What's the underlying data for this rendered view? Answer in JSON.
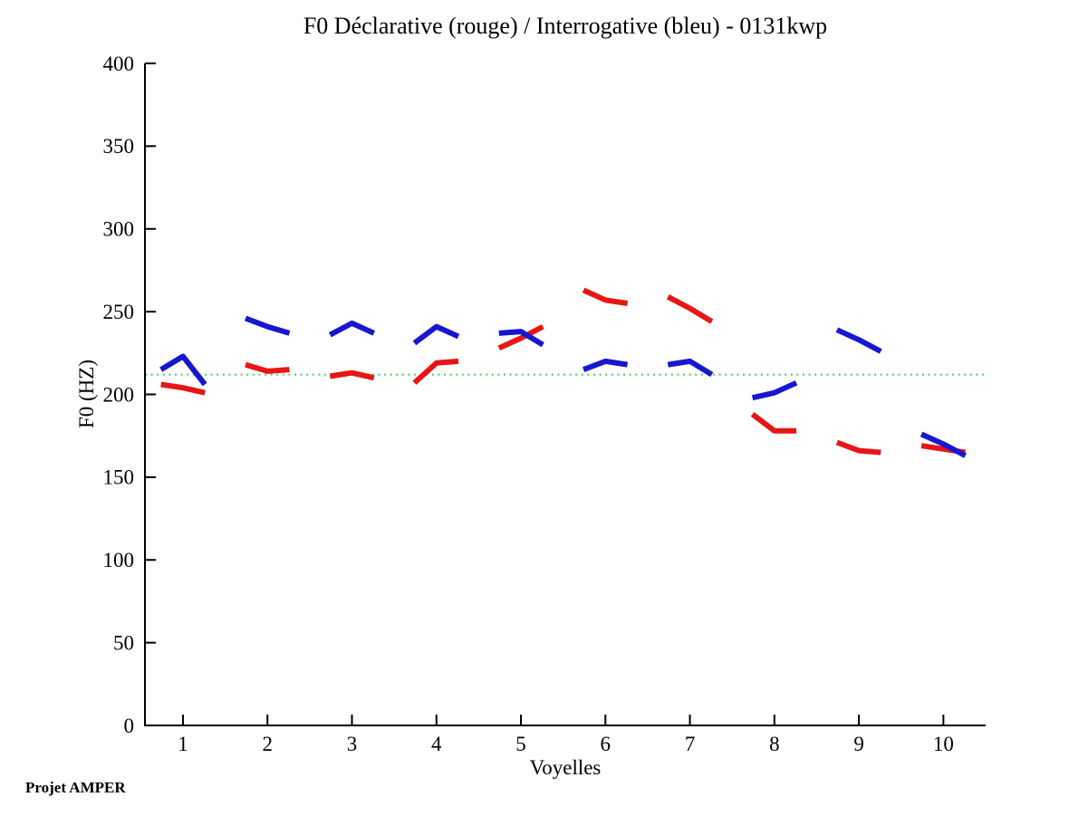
{
  "chart_data": {
    "type": "line",
    "title": "F0 Déclarative (rouge) / Interrogative (bleu) - 0131kwp",
    "xlabel": "Voyelles",
    "ylabel": "F0 (HZ)",
    "annotation": "Projet AMPER",
    "xlim": [
      0.55,
      10.5
    ],
    "ylim": [
      0,
      400
    ],
    "xticks": [
      1,
      2,
      3,
      4,
      5,
      6,
      7,
      8,
      9,
      10
    ],
    "yticks": [
      0,
      50,
      100,
      150,
      200,
      250,
      300,
      350,
      400
    ],
    "grid": false,
    "legend_position": "none (encoded in title: rouge = red declarative, bleu = blue interrogative)",
    "reference_line": {
      "y": 212,
      "color": "#44cc66",
      "style": "dotted"
    },
    "point_offsets": [
      -0.26,
      0,
      0.26
    ],
    "categories": [
      1,
      2,
      3,
      4,
      5,
      6,
      7,
      8,
      9,
      10
    ],
    "series": [
      {
        "name": "Déclarative (rouge)",
        "color": "#e81515",
        "line_width": 6,
        "values_by_vowel": [
          [
            206,
            204,
            201
          ],
          [
            218,
            214,
            215
          ],
          [
            211,
            213,
            210
          ],
          [
            207,
            219,
            220
          ],
          [
            228,
            234,
            241
          ],
          [
            263,
            257,
            255
          ],
          [
            259,
            252,
            244
          ],
          [
            188,
            178,
            178
          ],
          [
            171,
            166,
            165
          ],
          [
            169,
            167,
            165
          ]
        ]
      },
      {
        "name": "Interrogative (bleu)",
        "color": "#1717cf",
        "line_width": 6,
        "values_by_vowel": [
          [
            215,
            223,
            206
          ],
          [
            246,
            241,
            237
          ],
          [
            236,
            243,
            237
          ],
          [
            231,
            241,
            235
          ],
          [
            237,
            238,
            230
          ],
          [
            215,
            220,
            218
          ],
          [
            218,
            220,
            212
          ],
          [
            198,
            201,
            207
          ],
          [
            239,
            233,
            226
          ],
          [
            176,
            170,
            163
          ]
        ]
      }
    ],
    "axis_color": "#000000"
  }
}
